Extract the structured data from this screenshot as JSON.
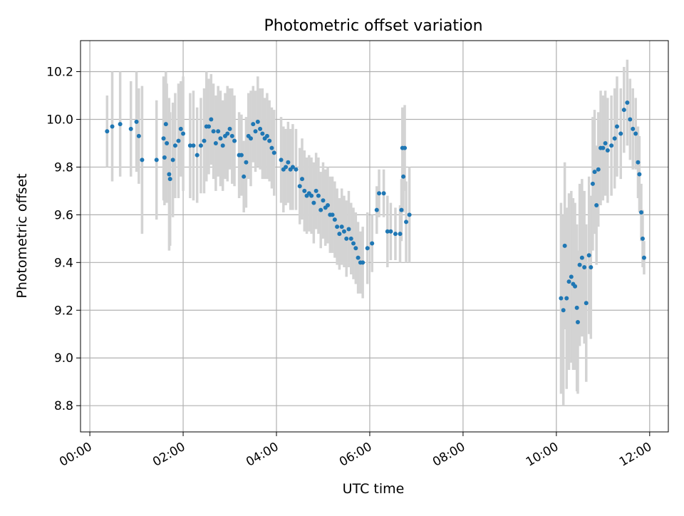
{
  "chart_data": {
    "type": "scatter",
    "title": "Photometric offset variation",
    "xlabel": "UTC time",
    "ylabel": "Photometric offset",
    "xlim": [
      -0.2,
      12.4
    ],
    "ylim": [
      8.69,
      10.33
    ],
    "x_unit": "hours UTC",
    "x_ticks": [
      {
        "value": 0,
        "label": "00:00"
      },
      {
        "value": 2,
        "label": "02:00"
      },
      {
        "value": 4,
        "label": "04:00"
      },
      {
        "value": 6,
        "label": "06:00"
      },
      {
        "value": 8,
        "label": "08:00"
      },
      {
        "value": 10,
        "label": "10:00"
      },
      {
        "value": 12,
        "label": "12:00"
      }
    ],
    "y_ticks": [
      {
        "value": 8.8,
        "label": "8.8"
      },
      {
        "value": 9.0,
        "label": "9.0"
      },
      {
        "value": 9.2,
        "label": "9.2"
      },
      {
        "value": 9.4,
        "label": "9.4"
      },
      {
        "value": 9.6,
        "label": "9.6"
      },
      {
        "value": 9.8,
        "label": "9.8"
      },
      {
        "value": 10.0,
        "label": "10.0"
      },
      {
        "value": 10.2,
        "label": "10.2"
      }
    ],
    "grid": true,
    "x_tick_rotation": "30deg",
    "colors": {
      "point": "#1f77b4",
      "error_bar": "#d3d3d3",
      "grid": "#b0b0b0"
    },
    "series": [
      {
        "points": [
          {
            "x": 0.37,
            "y": 9.95,
            "err": 0.15
          },
          {
            "x": 0.48,
            "y": 9.97,
            "err": 0.23
          },
          {
            "x": 0.65,
            "y": 9.98,
            "err": 0.22
          },
          {
            "x": 0.88,
            "y": 9.96,
            "err": 0.2
          },
          {
            "x": 1.0,
            "y": 9.99,
            "err": 0.21
          },
          {
            "x": 1.05,
            "y": 9.93,
            "err": 0.2
          },
          {
            "x": 1.12,
            "y": 9.83,
            "err": 0.31
          },
          {
            "x": 1.43,
            "y": 9.83,
            "err": 0.25
          },
          {
            "x": 1.58,
            "y": 9.92,
            "err": 0.26
          },
          {
            "x": 1.6,
            "y": 9.84,
            "err": 0.2
          },
          {
            "x": 1.63,
            "y": 9.98,
            "err": 0.22
          },
          {
            "x": 1.65,
            "y": 9.9,
            "err": 0.25
          },
          {
            "x": 1.7,
            "y": 9.77,
            "err": 0.32
          },
          {
            "x": 1.72,
            "y": 9.75,
            "err": 0.28
          },
          {
            "x": 1.78,
            "y": 9.83,
            "err": 0.24
          },
          {
            "x": 1.83,
            "y": 9.89,
            "err": 0.22
          },
          {
            "x": 1.9,
            "y": 9.91,
            "err": 0.24
          },
          {
            "x": 1.95,
            "y": 9.96,
            "err": 0.2
          },
          {
            "x": 2.0,
            "y": 9.94,
            "err": 0.24
          },
          {
            "x": 2.15,
            "y": 9.89,
            "err": 0.22
          },
          {
            "x": 2.22,
            "y": 9.89,
            "err": 0.23
          },
          {
            "x": 2.3,
            "y": 9.85,
            "err": 0.2
          },
          {
            "x": 2.38,
            "y": 9.89,
            "err": 0.2
          },
          {
            "x": 2.45,
            "y": 9.91,
            "err": 0.22
          },
          {
            "x": 2.5,
            "y": 9.97,
            "err": 0.23
          },
          {
            "x": 2.55,
            "y": 9.97,
            "err": 0.2
          },
          {
            "x": 2.6,
            "y": 10.0,
            "err": 0.19
          },
          {
            "x": 2.65,
            "y": 9.95,
            "err": 0.2
          },
          {
            "x": 2.7,
            "y": 9.9,
            "err": 0.2
          },
          {
            "x": 2.75,
            "y": 9.95,
            "err": 0.19
          },
          {
            "x": 2.8,
            "y": 9.92,
            "err": 0.2
          },
          {
            "x": 2.85,
            "y": 9.89,
            "err": 0.19
          },
          {
            "x": 2.9,
            "y": 9.93,
            "err": 0.18
          },
          {
            "x": 2.95,
            "y": 9.94,
            "err": 0.2
          },
          {
            "x": 3.0,
            "y": 9.96,
            "err": 0.17
          },
          {
            "x": 3.05,
            "y": 9.93,
            "err": 0.2
          },
          {
            "x": 3.1,
            "y": 9.91,
            "err": 0.19
          },
          {
            "x": 3.2,
            "y": 9.85,
            "err": 0.18
          },
          {
            "x": 3.25,
            "y": 9.85,
            "err": 0.17
          },
          {
            "x": 3.3,
            "y": 9.76,
            "err": 0.15
          },
          {
            "x": 3.35,
            "y": 9.82,
            "err": 0.19
          },
          {
            "x": 3.4,
            "y": 9.93,
            "err": 0.18
          },
          {
            "x": 3.45,
            "y": 9.92,
            "err": 0.2
          },
          {
            "x": 3.5,
            "y": 9.98,
            "err": 0.16
          },
          {
            "x": 3.55,
            "y": 9.95,
            "err": 0.17
          },
          {
            "x": 3.6,
            "y": 9.99,
            "err": 0.19
          },
          {
            "x": 3.65,
            "y": 9.96,
            "err": 0.17
          },
          {
            "x": 3.7,
            "y": 9.94,
            "err": 0.19
          },
          {
            "x": 3.75,
            "y": 9.92,
            "err": 0.17
          },
          {
            "x": 3.8,
            "y": 9.93,
            "err": 0.18
          },
          {
            "x": 3.85,
            "y": 9.91,
            "err": 0.17
          },
          {
            "x": 3.9,
            "y": 9.88,
            "err": 0.17
          },
          {
            "x": 3.95,
            "y": 9.86,
            "err": 0.18
          },
          {
            "x": 4.1,
            "y": 9.83,
            "err": 0.18
          },
          {
            "x": 4.15,
            "y": 9.79,
            "err": 0.18
          },
          {
            "x": 4.2,
            "y": 9.8,
            "err": 0.16
          },
          {
            "x": 4.25,
            "y": 9.82,
            "err": 0.17
          },
          {
            "x": 4.3,
            "y": 9.79,
            "err": 0.17
          },
          {
            "x": 4.35,
            "y": 9.8,
            "err": 0.18
          },
          {
            "x": 4.42,
            "y": 9.79,
            "err": 0.17
          },
          {
            "x": 4.5,
            "y": 9.72,
            "err": 0.16
          },
          {
            "x": 4.55,
            "y": 9.75,
            "err": 0.17
          },
          {
            "x": 4.6,
            "y": 9.7,
            "err": 0.17
          },
          {
            "x": 4.65,
            "y": 9.68,
            "err": 0.16
          },
          {
            "x": 4.7,
            "y": 9.69,
            "err": 0.16
          },
          {
            "x": 4.75,
            "y": 9.68,
            "err": 0.16
          },
          {
            "x": 4.8,
            "y": 9.65,
            "err": 0.17
          },
          {
            "x": 4.85,
            "y": 9.7,
            "err": 0.16
          },
          {
            "x": 4.9,
            "y": 9.68,
            "err": 0.16
          },
          {
            "x": 4.95,
            "y": 9.62,
            "err": 0.16
          },
          {
            "x": 5.0,
            "y": 9.66,
            "err": 0.16
          },
          {
            "x": 5.05,
            "y": 9.63,
            "err": 0.16
          },
          {
            "x": 5.1,
            "y": 9.64,
            "err": 0.16
          },
          {
            "x": 5.15,
            "y": 9.6,
            "err": 0.16
          },
          {
            "x": 5.2,
            "y": 9.6,
            "err": 0.16
          },
          {
            "x": 5.25,
            "y": 9.58,
            "err": 0.16
          },
          {
            "x": 5.3,
            "y": 9.55,
            "err": 0.16
          },
          {
            "x": 5.35,
            "y": 9.52,
            "err": 0.15
          },
          {
            "x": 5.4,
            "y": 9.55,
            "err": 0.16
          },
          {
            "x": 5.45,
            "y": 9.53,
            "err": 0.15
          },
          {
            "x": 5.5,
            "y": 9.5,
            "err": 0.16
          },
          {
            "x": 5.55,
            "y": 9.54,
            "err": 0.16
          },
          {
            "x": 5.6,
            "y": 9.5,
            "err": 0.15
          },
          {
            "x": 5.65,
            "y": 9.48,
            "err": 0.15
          },
          {
            "x": 5.7,
            "y": 9.46,
            "err": 0.15
          },
          {
            "x": 5.75,
            "y": 9.42,
            "err": 0.15
          },
          {
            "x": 5.8,
            "y": 9.4,
            "err": 0.13
          },
          {
            "x": 5.85,
            "y": 9.4,
            "err": 0.15
          },
          {
            "x": 5.95,
            "y": 9.46,
            "err": 0.15
          },
          {
            "x": 6.05,
            "y": 9.48,
            "err": 0.12
          },
          {
            "x": 6.15,
            "y": 9.62,
            "err": 0.1
          },
          {
            "x": 6.2,
            "y": 9.69,
            "err": 0.1
          },
          {
            "x": 6.3,
            "y": 9.69,
            "err": 0.1
          },
          {
            "x": 6.38,
            "y": 9.53,
            "err": 0.15
          },
          {
            "x": 6.45,
            "y": 9.53,
            "err": 0.12
          },
          {
            "x": 6.55,
            "y": 9.52,
            "err": 0.11
          },
          {
            "x": 6.65,
            "y": 9.52,
            "err": 0.12
          },
          {
            "x": 6.68,
            "y": 9.62,
            "err": 0.13
          },
          {
            "x": 6.7,
            "y": 9.88,
            "err": 0.17
          },
          {
            "x": 6.72,
            "y": 9.76,
            "err": 0.15
          },
          {
            "x": 6.75,
            "y": 9.88,
            "err": 0.18
          },
          {
            "x": 6.78,
            "y": 9.57,
            "err": 0.17
          },
          {
            "x": 6.85,
            "y": 9.6,
            "err": 0.2
          },
          {
            "x": 10.1,
            "y": 9.25,
            "err": 0.4
          },
          {
            "x": 10.15,
            "y": 9.2,
            "err": 0.4
          },
          {
            "x": 10.18,
            "y": 9.47,
            "err": 0.35
          },
          {
            "x": 10.22,
            "y": 9.25,
            "err": 0.38
          },
          {
            "x": 10.27,
            "y": 9.32,
            "err": 0.37
          },
          {
            "x": 10.32,
            "y": 9.34,
            "err": 0.36
          },
          {
            "x": 10.36,
            "y": 9.31,
            "err": 0.36
          },
          {
            "x": 10.4,
            "y": 9.3,
            "err": 0.35
          },
          {
            "x": 10.44,
            "y": 9.21,
            "err": 0.35
          },
          {
            "x": 10.46,
            "y": 9.15,
            "err": 0.3
          },
          {
            "x": 10.5,
            "y": 9.39,
            "err": 0.34
          },
          {
            "x": 10.55,
            "y": 9.42,
            "err": 0.33
          },
          {
            "x": 10.6,
            "y": 9.38,
            "err": 0.32
          },
          {
            "x": 10.64,
            "y": 9.23,
            "err": 0.33
          },
          {
            "x": 10.7,
            "y": 9.43,
            "err": 0.33
          },
          {
            "x": 10.74,
            "y": 9.38,
            "err": 0.3
          },
          {
            "x": 10.78,
            "y": 9.73,
            "err": 0.28
          },
          {
            "x": 10.82,
            "y": 9.78,
            "err": 0.26
          },
          {
            "x": 10.86,
            "y": 9.64,
            "err": 0.25
          },
          {
            "x": 10.9,
            "y": 9.79,
            "err": 0.24
          },
          {
            "x": 10.95,
            "y": 9.88,
            "err": 0.24
          },
          {
            "x": 11.0,
            "y": 9.88,
            "err": 0.22
          },
          {
            "x": 11.05,
            "y": 9.9,
            "err": 0.22
          },
          {
            "x": 11.1,
            "y": 9.87,
            "err": 0.22
          },
          {
            "x": 11.18,
            "y": 9.89,
            "err": 0.21
          },
          {
            "x": 11.25,
            "y": 9.92,
            "err": 0.21
          },
          {
            "x": 11.3,
            "y": 9.97,
            "err": 0.21
          },
          {
            "x": 11.38,
            "y": 9.94,
            "err": 0.19
          },
          {
            "x": 11.45,
            "y": 10.04,
            "err": 0.18
          },
          {
            "x": 11.52,
            "y": 10.07,
            "err": 0.18
          },
          {
            "x": 11.58,
            "y": 10.0,
            "err": 0.17
          },
          {
            "x": 11.64,
            "y": 9.96,
            "err": 0.17
          },
          {
            "x": 11.7,
            "y": 9.94,
            "err": 0.15
          },
          {
            "x": 11.75,
            "y": 9.82,
            "err": 0.15
          },
          {
            "x": 11.78,
            "y": 9.77,
            "err": 0.16
          },
          {
            "x": 11.82,
            "y": 9.61,
            "err": 0.12
          },
          {
            "x": 11.85,
            "y": 9.5,
            "err": 0.12
          },
          {
            "x": 11.88,
            "y": 9.42,
            "err": 0.07
          }
        ]
      }
    ]
  }
}
